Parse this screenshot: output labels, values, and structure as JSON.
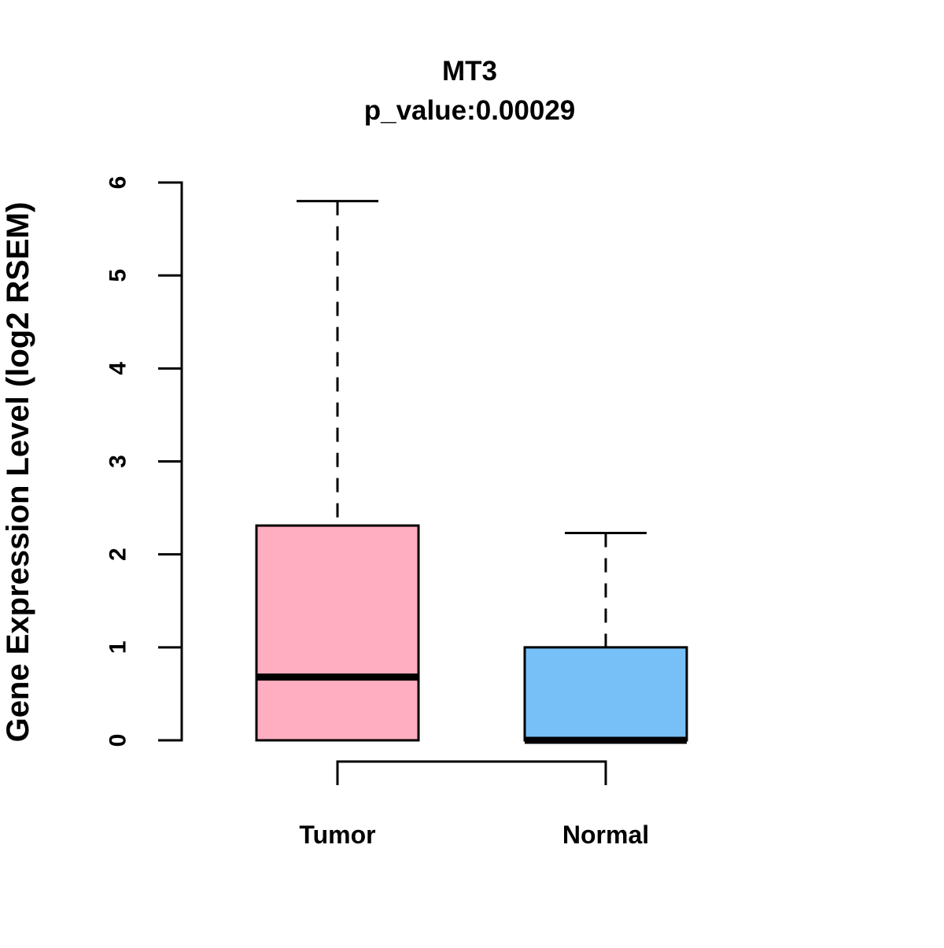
{
  "chart_data": {
    "type": "boxplot",
    "title": "MT3",
    "subtitle": "p_value:0.00029",
    "ylabel": "Gene Expression Level (log2 RSEM)",
    "xlabel": "",
    "ylim": [
      0,
      6
    ],
    "yticks": [
      0,
      1,
      2,
      3,
      4,
      5,
      6
    ],
    "grid": false,
    "legend": "none",
    "categories": [
      "Tumor",
      "Normal"
    ],
    "series": [
      {
        "name": "Tumor",
        "fill": "#FFAEC1",
        "whisker_low": 0,
        "q1": 0,
        "median": 0.68,
        "q3": 2.31,
        "whisker_high": 5.8
      },
      {
        "name": "Normal",
        "fill": "#77C0F7",
        "whisker_low": 0,
        "q1": 0,
        "median": 0,
        "q3": 1.0,
        "whisker_high": 2.23
      }
    ],
    "stroke_color": "#000000",
    "background": "#FFFFFF"
  }
}
